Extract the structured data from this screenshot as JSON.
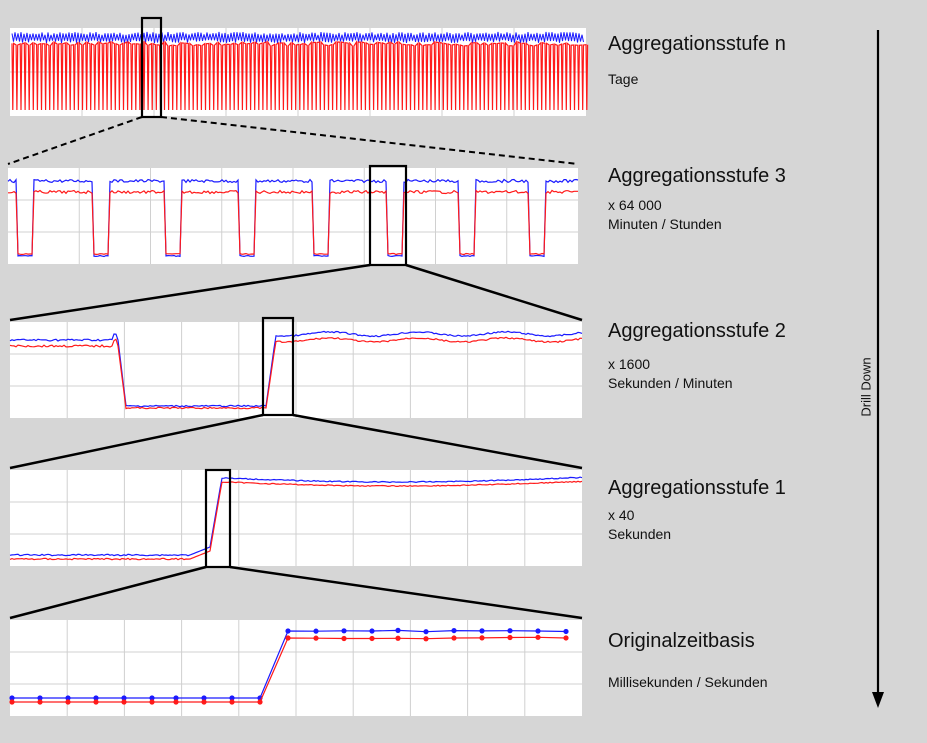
{
  "levels": [
    {
      "title": "Aggregationsstufe n",
      "factor": "",
      "unit": "Tage"
    },
    {
      "title": "Aggregationsstufe 3",
      "factor": "x 64 000",
      "unit": "Minuten / Stunden"
    },
    {
      "title": "Aggregationsstufe 2",
      "factor": "x 1600",
      "unit": "Sekunden / Minuten"
    },
    {
      "title": "Aggregationsstufe 1",
      "factor": "x 40",
      "unit": "Sekunden"
    },
    {
      "title": "Originalzeitbasis",
      "factor": "",
      "unit": "Millisekunden / Sekunden"
    }
  ],
  "arrow": {
    "label": "Drill Down"
  },
  "colors": {
    "background": "#d6d6d6",
    "panel": "#ffffff",
    "grid": "#d0d0d0",
    "series_blue": "#1a1aff",
    "series_red": "#ff1a1a",
    "frame": "#000000"
  }
}
